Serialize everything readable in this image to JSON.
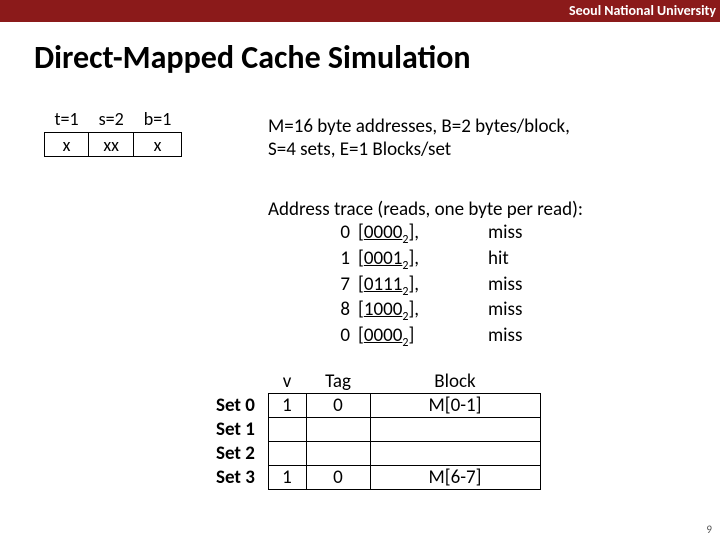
{
  "header": {
    "university": "Seoul National University"
  },
  "title": "Direct-Mapped Cache Simulation",
  "bits": {
    "t_label": "t=1",
    "s_label": "s=2",
    "b_label": "b=1",
    "t_val": "x",
    "s_val": "xx",
    "b_val": "x"
  },
  "params": {
    "line1": "M=16 byte addresses, B=2 bytes/block,",
    "line2": "S=4 sets, E=1 Blocks/set"
  },
  "trace": {
    "heading": "Address trace (reads, one byte per read):",
    "rows": [
      {
        "addr": "0",
        "bin": "0000",
        "suffix": ",",
        "result": "miss"
      },
      {
        "addr": "1",
        "bin": "0001",
        "suffix": ",",
        "result": "hit"
      },
      {
        "addr": "7",
        "bin": "0111",
        "suffix": ",",
        "result": "miss"
      },
      {
        "addr": "8",
        "bin": "1000",
        "suffix": ",",
        "result": "miss"
      },
      {
        "addr": "0",
        "bin": "0000",
        "suffix": "",
        "result": "miss"
      }
    ]
  },
  "cache": {
    "col_v": "v",
    "col_tag": "Tag",
    "col_block": "Block",
    "sets": [
      {
        "label": "Set 0",
        "v": "1",
        "tag": "0",
        "block": "M[0-1]"
      },
      {
        "label": "Set 1",
        "v": "",
        "tag": "",
        "block": ""
      },
      {
        "label": "Set 2",
        "v": "",
        "tag": "",
        "block": ""
      },
      {
        "label": "Set 3",
        "v": "1",
        "tag": "0",
        "block": "M[6-7]"
      }
    ]
  },
  "pagenum": "9",
  "style": {
    "accent": "#8b1a1a",
    "text": "#000000",
    "background": "#ffffff",
    "title_fontsize": 32,
    "body_fontsize": 19
  }
}
